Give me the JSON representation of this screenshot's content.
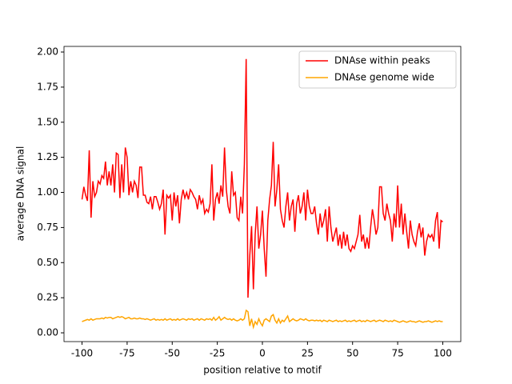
{
  "chart_data": {
    "type": "line",
    "xlabel": "position relative to motif",
    "ylabel": "average DNA signal",
    "x": [
      -100,
      -99,
      -98,
      -97,
      -96,
      -95,
      -94,
      -93,
      -92,
      -91,
      -90,
      -89,
      -88,
      -87,
      -86,
      -85,
      -84,
      -83,
      -82,
      -81,
      -80,
      -79,
      -78,
      -77,
      -76,
      -75,
      -74,
      -73,
      -72,
      -71,
      -70,
      -69,
      -68,
      -67,
      -66,
      -65,
      -64,
      -63,
      -62,
      -61,
      -60,
      -59,
      -58,
      -57,
      -56,
      -55,
      -54,
      -53,
      -52,
      -51,
      -50,
      -49,
      -48,
      -47,
      -46,
      -45,
      -44,
      -43,
      -42,
      -41,
      -40,
      -39,
      -38,
      -37,
      -36,
      -35,
      -34,
      -33,
      -32,
      -31,
      -30,
      -29,
      -28,
      -27,
      -26,
      -25,
      -24,
      -23,
      -22,
      -21,
      -20,
      -19,
      -18,
      -17,
      -16,
      -15,
      -14,
      -13,
      -12,
      -11,
      -10,
      -9,
      -8,
      -7,
      -6,
      -5,
      -4,
      -3,
      -2,
      -1,
      0,
      1,
      2,
      3,
      4,
      5,
      6,
      7,
      8,
      9,
      10,
      11,
      12,
      13,
      14,
      15,
      16,
      17,
      18,
      19,
      20,
      21,
      22,
      23,
      24,
      25,
      26,
      27,
      28,
      29,
      30,
      31,
      32,
      33,
      34,
      35,
      36,
      37,
      38,
      39,
      40,
      41,
      42,
      43,
      44,
      45,
      46,
      47,
      48,
      49,
      50,
      51,
      52,
      53,
      54,
      55,
      56,
      57,
      58,
      59,
      60,
      61,
      62,
      63,
      64,
      65,
      66,
      67,
      68,
      69,
      70,
      71,
      72,
      73,
      74,
      75,
      76,
      77,
      78,
      79,
      80,
      81,
      82,
      83,
      84,
      85,
      86,
      87,
      88,
      89,
      90,
      91,
      92,
      93,
      94,
      95,
      96,
      97,
      98,
      99,
      100
    ],
    "series": [
      {
        "name": "DNAse within peaks",
        "color": "#ff0000",
        "values": [
          0.95,
          1.04,
          0.98,
          0.94,
          1.3,
          0.82,
          1.08,
          0.97,
          1.0,
          1.08,
          1.06,
          1.12,
          1.1,
          1.22,
          1.05,
          1.15,
          1.05,
          1.2,
          1.0,
          1.28,
          1.27,
          0.96,
          1.2,
          1.0,
          1.32,
          1.25,
          0.98,
          1.08,
          1.0,
          1.08,
          1.05,
          0.96,
          1.18,
          1.18,
          0.98,
          0.98,
          0.93,
          0.92,
          0.97,
          0.88,
          0.97,
          0.97,
          0.93,
          0.88,
          0.92,
          1.02,
          0.7,
          0.98,
          0.96,
          0.98,
          0.8,
          1.0,
          0.9,
          0.98,
          0.78,
          0.95,
          1.02,
          0.96,
          1.0,
          0.95,
          1.02,
          1.0,
          0.97,
          0.95,
          0.88,
          0.98,
          0.92,
          0.95,
          0.85,
          0.88,
          0.86,
          0.92,
          1.2,
          0.8,
          0.95,
          1.0,
          0.92,
          1.05,
          0.97,
          1.32,
          1.02,
          0.9,
          0.85,
          1.15,
          0.98,
          1.0,
          0.82,
          0.8,
          0.97,
          0.85,
          1.2,
          1.95,
          0.25,
          0.55,
          0.76,
          0.31,
          0.7,
          0.9,
          0.6,
          0.7,
          0.87,
          0.6,
          0.4,
          0.8,
          0.95,
          1.05,
          1.36,
          0.9,
          1.02,
          1.2,
          0.88,
          0.8,
          0.75,
          0.9,
          1.0,
          0.8,
          0.9,
          0.95,
          0.72,
          0.92,
          0.98,
          0.85,
          0.9,
          1.0,
          0.8,
          1.02,
          0.9,
          0.85,
          0.85,
          0.9,
          0.78,
          0.7,
          0.85,
          0.75,
          0.8,
          0.88,
          0.65,
          0.9,
          0.75,
          0.65,
          0.7,
          0.75,
          0.62,
          0.7,
          0.6,
          0.72,
          0.62,
          0.7,
          0.6,
          0.58,
          0.62,
          0.6,
          0.65,
          0.7,
          0.84,
          0.65,
          0.7,
          0.6,
          0.68,
          0.6,
          0.75,
          0.88,
          0.8,
          0.7,
          0.75,
          1.04,
          1.04,
          0.85,
          0.8,
          0.92,
          0.85,
          0.8,
          0.65,
          0.85,
          0.75,
          1.05,
          0.75,
          0.92,
          0.7,
          0.85,
          0.72,
          0.6,
          0.8,
          0.7,
          0.65,
          0.62,
          0.72,
          0.78,
          0.68,
          0.75,
          0.55,
          0.65,
          0.7,
          0.68,
          0.7,
          0.65,
          0.8,
          0.86,
          0.6,
          0.8,
          0.79
        ]
      },
      {
        "name": "DNAse genome wide",
        "color": "#ffa500",
        "values": [
          0.08,
          0.085,
          0.09,
          0.095,
          0.09,
          0.1,
          0.09,
          0.095,
          0.1,
          0.1,
          0.1,
          0.105,
          0.1,
          0.11,
          0.105,
          0.11,
          0.11,
          0.1,
          0.105,
          0.11,
          0.115,
          0.11,
          0.115,
          0.11,
          0.1,
          0.105,
          0.11,
          0.1,
          0.1,
          0.105,
          0.1,
          0.1,
          0.105,
          0.1,
          0.1,
          0.095,
          0.1,
          0.095,
          0.09,
          0.095,
          0.1,
          0.09,
          0.095,
          0.09,
          0.095,
          0.09,
          0.1,
          0.09,
          0.095,
          0.1,
          0.09,
          0.095,
          0.09,
          0.1,
          0.09,
          0.095,
          0.1,
          0.095,
          0.09,
          0.1,
          0.095,
          0.1,
          0.09,
          0.095,
          0.1,
          0.09,
          0.1,
          0.095,
          0.09,
          0.1,
          0.095,
          0.1,
          0.09,
          0.11,
          0.09,
          0.1,
          0.115,
          0.09,
          0.1,
          0.11,
          0.1,
          0.095,
          0.1,
          0.09,
          0.1,
          0.09,
          0.085,
          0.09,
          0.1,
          0.09,
          0.1,
          0.16,
          0.15,
          0.05,
          0.1,
          0.04,
          0.08,
          0.06,
          0.1,
          0.07,
          0.05,
          0.09,
          0.1,
          0.09,
          0.08,
          0.12,
          0.13,
          0.09,
          0.07,
          0.1,
          0.07,
          0.09,
          0.08,
          0.1,
          0.12,
          0.08,
          0.09,
          0.1,
          0.09,
          0.085,
          0.09,
          0.1,
          0.095,
          0.09,
          0.1,
          0.09,
          0.085,
          0.09,
          0.09,
          0.085,
          0.09,
          0.085,
          0.09,
          0.08,
          0.09,
          0.085,
          0.08,
          0.09,
          0.085,
          0.08,
          0.085,
          0.09,
          0.08,
          0.085,
          0.08,
          0.085,
          0.09,
          0.08,
          0.085,
          0.08,
          0.085,
          0.09,
          0.08,
          0.085,
          0.09,
          0.08,
          0.085,
          0.08,
          0.09,
          0.085,
          0.08,
          0.085,
          0.09,
          0.08,
          0.085,
          0.09,
          0.085,
          0.08,
          0.09,
          0.085,
          0.08,
          0.085,
          0.08,
          0.09,
          0.085,
          0.08,
          0.075,
          0.08,
          0.085,
          0.08,
          0.075,
          0.08,
          0.085,
          0.08,
          0.08,
          0.075,
          0.08,
          0.085,
          0.08,
          0.075,
          0.08,
          0.08,
          0.085,
          0.08,
          0.075,
          0.08,
          0.085,
          0.08,
          0.085,
          0.08,
          0.08
        ]
      }
    ],
    "xlim": [
      -110,
      110
    ],
    "xticks": [
      -100,
      -75,
      -50,
      -25,
      0,
      25,
      50,
      75,
      100
    ],
    "ylim": [
      -0.0625,
      2.04
    ],
    "yticks": [
      {
        "value": 0,
        "label": "0.00"
      },
      {
        "value": 0.25,
        "label": "0.25"
      },
      {
        "value": 0.5,
        "label": "0.50"
      },
      {
        "value": 0.75,
        "label": "0.75"
      },
      {
        "value": 1,
        "label": "1.00"
      },
      {
        "value": 1.25,
        "label": "1.25"
      },
      {
        "value": 1.5,
        "label": "1.50"
      },
      {
        "value": 1.75,
        "label": "1.75"
      },
      {
        "value": 2,
        "label": "2.00"
      }
    ],
    "legend": "upper right"
  }
}
